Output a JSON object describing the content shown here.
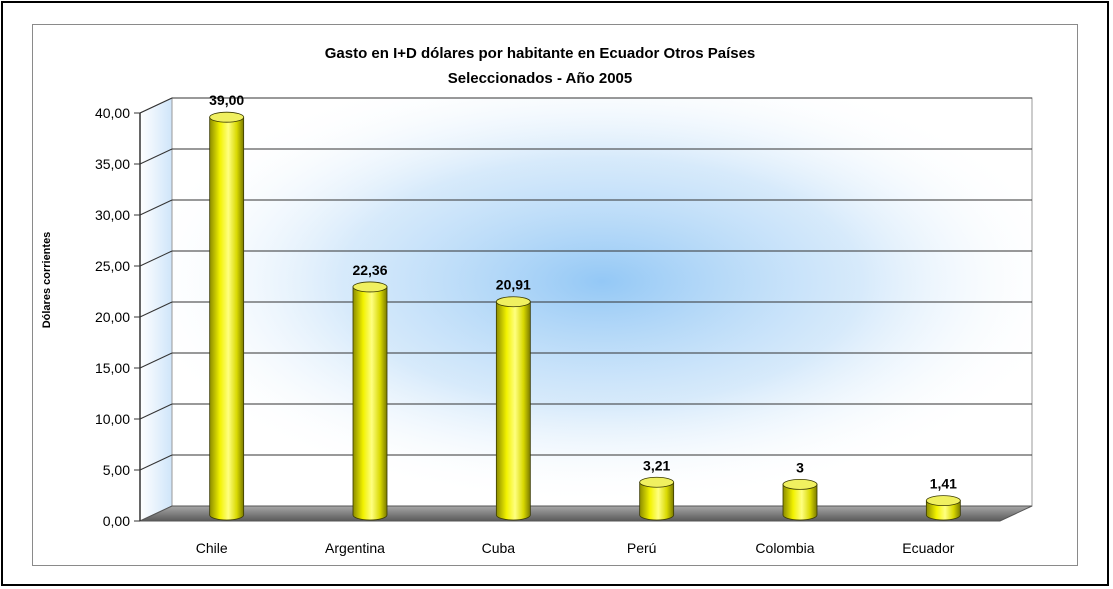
{
  "chart_data": {
    "type": "bar",
    "title": "Gasto en I+D dólares por habitante en Ecuador Otros Países",
    "subtitle": "Seleccionados - Año 2005",
    "ylabel": "Dólares corrientes",
    "xlabel": "",
    "ylim": [
      0,
      40
    ],
    "yticks": [
      0,
      5,
      10,
      15,
      20,
      25,
      30,
      35,
      40
    ],
    "ytick_labels": [
      "0,00",
      "5,00",
      "10,00",
      "15,00",
      "20,00",
      "25,00",
      "30,00",
      "35,00",
      "40,00"
    ],
    "categories": [
      "Chile",
      "Argentina",
      "Cuba",
      "Perú",
      "Colombia",
      "Ecuador"
    ],
    "values": [
      39.0,
      22.36,
      20.91,
      3.21,
      3,
      1.41
    ],
    "value_labels": [
      "39,00",
      "22,36",
      "20,91",
      "3,21",
      "3",
      "1,41"
    ],
    "grid": true,
    "legend": "none",
    "colors": {
      "bar": "#e6e600",
      "bar_shadow": "#8c8c00",
      "bar_highlight": "#ffff80",
      "floor": "#808080",
      "wall_glow": "#8ec5f5"
    }
  }
}
